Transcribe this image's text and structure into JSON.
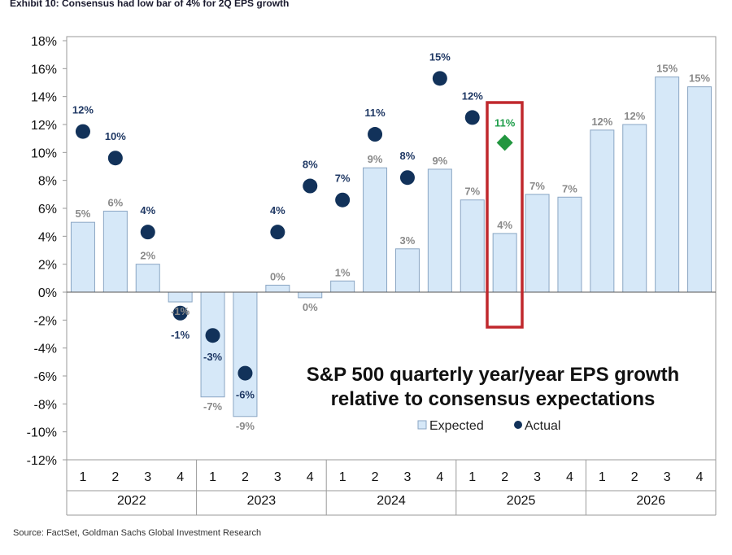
{
  "header": {
    "exhibit": "Exhibit 10: Consensus had low bar of 4% for 2Q EPS growth"
  },
  "footer": {
    "source": "Source: FactSet, Goldman Sachs Global Investment Research"
  },
  "colors": {
    "bar_fill": "#d6e8f8",
    "bar_stroke": "#8aa6c4",
    "actual": "#12325a",
    "highlight": "#22963f",
    "box": "#c0282d"
  },
  "chart_data": {
    "type": "bar",
    "title": "S&P 500 quarterly year/year EPS growth",
    "subtitle": "relative to consensus expectations",
    "ylim": [
      -12,
      18
    ],
    "yticks": [
      "18%",
      "16%",
      "14%",
      "12%",
      "10%",
      "8%",
      "6%",
      "4%",
      "2%",
      "0%",
      "-2%",
      "-4%",
      "-6%",
      "-8%",
      "-10%",
      "-12%"
    ],
    "ytick_values": [
      18,
      16,
      14,
      12,
      10,
      8,
      6,
      4,
      2,
      0,
      -2,
      -4,
      -6,
      -8,
      -10,
      -12
    ],
    "quarters": [
      "1",
      "2",
      "3",
      "4",
      "1",
      "2",
      "3",
      "4",
      "1",
      "2",
      "3",
      "4",
      "1",
      "2",
      "3",
      "4",
      "1",
      "2",
      "3",
      "4"
    ],
    "years": [
      "2022",
      "2023",
      "2024",
      "2025",
      "2026"
    ],
    "legend": {
      "expected": "Expected",
      "actual": "Actual"
    },
    "series": [
      {
        "name": "Expected",
        "values": [
          5,
          5.8,
          2,
          -0.7,
          -7.5,
          -8.9,
          0.5,
          -0.4,
          0.8,
          8.9,
          3.1,
          8.8,
          6.6,
          4.2,
          7,
          6.8,
          11.6,
          12,
          15.4,
          14.7
        ],
        "labels": [
          "5%",
          "6%",
          "2%",
          "-1%",
          "-7%",
          "-9%",
          "0%",
          "0%",
          "1%",
          "9%",
          "3%",
          "9%",
          "7%",
          "4%",
          "7%",
          "7%",
          "12%",
          "12%",
          "15%",
          "15%"
        ]
      },
      {
        "name": "Actual",
        "values": [
          11.5,
          9.6,
          4.3,
          -1.5,
          -3.1,
          -5.8,
          4.3,
          7.6,
          6.6,
          11.3,
          8.2,
          15.3,
          12.5,
          null,
          null,
          null,
          null,
          null,
          null,
          null
        ],
        "labels": [
          "12%",
          "10%",
          "4%",
          "-1%",
          "-3%",
          "-6%",
          "4%",
          "8%",
          "7%",
          "11%",
          "8%",
          "15%",
          "12%",
          null,
          null,
          null,
          null,
          null,
          null,
          null
        ]
      }
    ],
    "highlight": {
      "index": 13,
      "value": 10.7,
      "label": "11%"
    }
  }
}
